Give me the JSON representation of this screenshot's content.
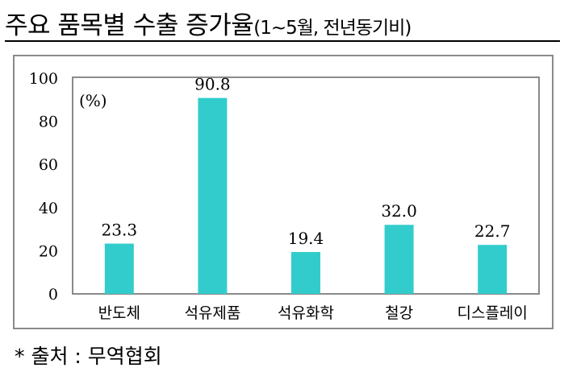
{
  "title": {
    "main": "주요 품목별 수출 증가율",
    "sub": "(1~5월, 전년동기비)"
  },
  "source": "* 출처 : 무역협회",
  "colors": {
    "bar": "#33CCCC",
    "frame": "#8a8a8a"
  },
  "chart_data": {
    "type": "bar",
    "title": "주요 품목별 수출 증가율(1~5월, 전년동기비)",
    "unit_label": "(%)",
    "categories": [
      "반도체",
      "석유제품",
      "석유화학",
      "철강",
      "디스플레이"
    ],
    "values": [
      23.3,
      90.8,
      19.4,
      32.0,
      22.7
    ],
    "value_labels": [
      "23.3",
      "90.8",
      "19.4",
      "32.0",
      "22.7"
    ],
    "yticks": [
      "0",
      "20",
      "40",
      "60",
      "80",
      "100"
    ],
    "ylim": [
      0,
      100
    ],
    "xlabel": "",
    "ylabel": "",
    "grid": false
  }
}
